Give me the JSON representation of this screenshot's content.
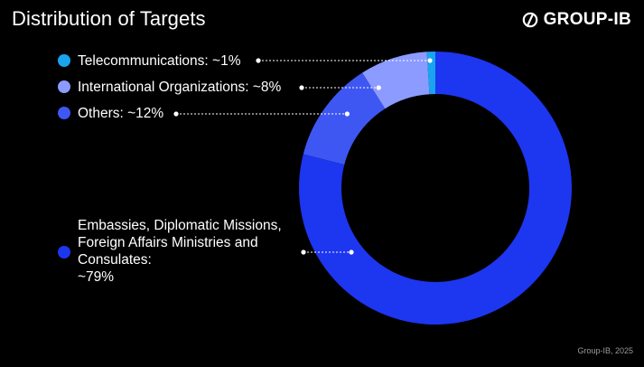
{
  "title": "Distribution of Targets",
  "logo": {
    "text": "GROUP-IB"
  },
  "footer": "Group-IB, 2025",
  "chart_data": {
    "type": "pie",
    "donut": true,
    "title": "Distribution of Targets",
    "slices": [
      {
        "label": "Telecommunications: ~1%",
        "value": 1,
        "color": "#18a4ef"
      },
      {
        "label": "International Organizations: ~8%",
        "value": 8,
        "color": "#8b9bff"
      },
      {
        "label": "Others: ~12%",
        "value": 12,
        "color": "#3f57f2"
      },
      {
        "label": "Embassies, Diplomatic Missions,\nForeign Affairs Ministries and\nConsulates:\n~79%",
        "value": 79,
        "color": "#1d36f0"
      }
    ]
  }
}
